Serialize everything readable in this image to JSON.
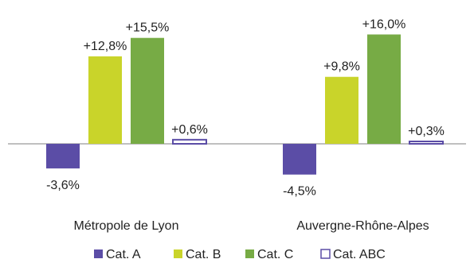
{
  "chart_data": {
    "type": "bar",
    "categories": [
      "Métropole de Lyon",
      "Auvergne-Rhône-Alpes"
    ],
    "series": [
      {
        "name": "Cat. A",
        "color": "#5b4da6",
        "fill": "solid",
        "values": [
          -3.6,
          -4.5
        ],
        "labels": [
          "-3,6%",
          "-4,5%"
        ]
      },
      {
        "name": "Cat. B",
        "color": "#c9d42a",
        "fill": "solid",
        "values": [
          12.8,
          9.8
        ],
        "labels": [
          "+12,8%",
          "+9,8%"
        ]
      },
      {
        "name": "Cat. C",
        "color": "#77ab45",
        "fill": "solid",
        "values": [
          15.5,
          16.0
        ],
        "labels": [
          "+15,5%",
          "+16,0%"
        ]
      },
      {
        "name": "Cat. ABC",
        "color": "#5b4da6",
        "fill": "outline",
        "values": [
          0.6,
          0.3
        ],
        "labels": [
          "+0,6%",
          "+0,3%"
        ]
      }
    ],
    "title": "",
    "xlabel": "",
    "ylabel": "",
    "ylim": [
      -5,
      17
    ],
    "grid": false,
    "legend": "bottom"
  }
}
